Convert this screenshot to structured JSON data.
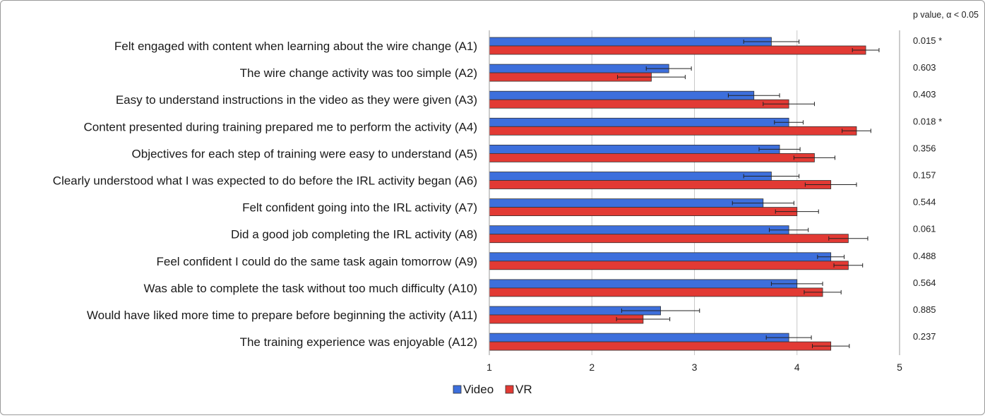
{
  "chart_data": {
    "type": "bar",
    "orientation": "horizontal",
    "title": "",
    "xlabel": "",
    "ylabel": "",
    "xlim": [
      1,
      5
    ],
    "xticks": [
      "1",
      "2",
      "3",
      "4",
      "5"
    ],
    "grid": true,
    "legend_position": "bottom",
    "pvalue_header": "p value,  α < 0.05",
    "categories": [
      "Felt engaged with content when learning about the wire change (A1)",
      "The wire change activity was too simple (A2)",
      "Easy to understand instructions in the video as they were given (A3)",
      "Content presented during training prepared me to perform the activity (A4)",
      "Objectives for each step of training were easy to understand (A5)",
      "Clearly understood what I was expected to do before the IRL activity began (A6)",
      "Felt confident going into the IRL activity (A7)",
      "Did a good job completing the IRL activity (A8)",
      "Feel confident I could do the same task again tomorrow (A9)",
      "Was able to complete the task without too much difficulty (A10)",
      "Would have liked more time to prepare before beginning the activity (A11)",
      "The training experience was enjoyable (A12)"
    ],
    "series": [
      {
        "name": "Video",
        "color": "#3d6fdc",
        "values": [
          3.75,
          2.75,
          3.58,
          3.92,
          3.83,
          3.75,
          3.67,
          3.92,
          4.33,
          4.0,
          2.67,
          3.92
        ],
        "errors": [
          0.27,
          0.22,
          0.25,
          0.14,
          0.2,
          0.27,
          0.3,
          0.19,
          0.13,
          0.25,
          0.38,
          0.22
        ]
      },
      {
        "name": "VR",
        "color": "#e23a34",
        "values": [
          4.67,
          2.58,
          3.92,
          4.58,
          4.17,
          4.33,
          4.0,
          4.5,
          4.5,
          4.25,
          2.5,
          4.33
        ],
        "errors": [
          0.13,
          0.33,
          0.25,
          0.14,
          0.2,
          0.25,
          0.21,
          0.19,
          0.14,
          0.18,
          0.26,
          0.18
        ]
      }
    ],
    "p_values": [
      "0.015 *",
      "0.603",
      "0.403",
      "0.018 *",
      "0.356",
      "0.157",
      "0.544",
      "0.061",
      "0.488",
      "0.564",
      "0.885",
      "0.237"
    ]
  }
}
